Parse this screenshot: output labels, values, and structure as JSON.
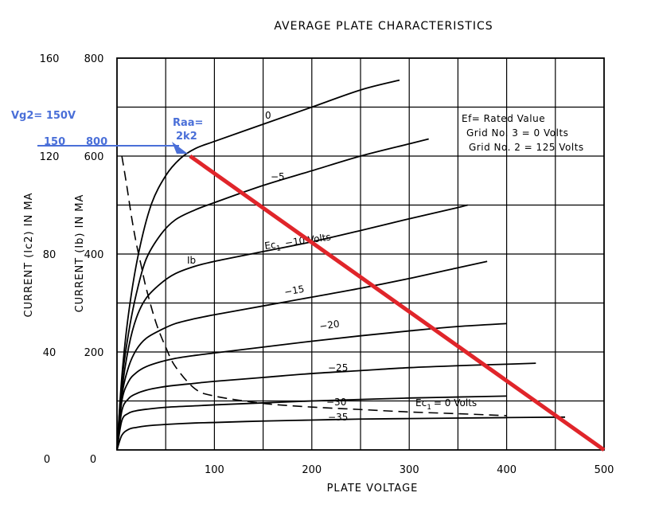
{
  "chart_data": {
    "type": "line",
    "title": "AVERAGE PLATE CHARACTERISTICS",
    "xlabel": "PLATE VOLTAGE",
    "ylabel_left": "CURRENT (Ic2) IN MA",
    "ylabel_right": "CURRENT (Ib) IN MA",
    "xlim": [
      0,
      500
    ],
    "ylim": [
      0,
      800
    ],
    "y2lim": [
      0,
      160
    ],
    "grid": true,
    "x_ticks": [
      "0",
      "100",
      "200",
      "300",
      "400",
      "500"
    ],
    "y_ticks_ib": [
      "0",
      "200",
      "400",
      "600",
      "800"
    ],
    "y_ticks_ic2": [
      "0",
      "40",
      "80",
      "120",
      "160"
    ],
    "series": [
      {
        "name": "0",
        "x": [
          0,
          5,
          12,
          22,
          35,
          50,
          65,
          80,
          100,
          150,
          200,
          250,
          290
        ],
        "y": [
          0,
          150,
          280,
          400,
          500,
          560,
          595,
          615,
          630,
          665,
          700,
          735,
          755
        ]
      },
      {
        "name": "-5",
        "x": [
          0,
          5,
          12,
          20,
          30,
          45,
          60,
          80,
          100,
          150,
          200,
          250,
          300,
          320
        ],
        "y": [
          0,
          140,
          240,
          320,
          390,
          440,
          470,
          490,
          505,
          540,
          570,
          600,
          625,
          635
        ]
      },
      {
        "name": "-10",
        "x": [
          0,
          5,
          12,
          20,
          30,
          45,
          60,
          80,
          100,
          150,
          200,
          250,
          300,
          350,
          360
        ],
        "y": [
          0,
          120,
          210,
          270,
          310,
          340,
          360,
          375,
          385,
          405,
          425,
          448,
          472,
          495,
          500
        ]
      },
      {
        "name": "-15",
        "x": [
          0,
          5,
          12,
          20,
          30,
          45,
          60,
          80,
          100,
          150,
          200,
          250,
          300,
          350,
          380
        ],
        "y": [
          0,
          110,
          170,
          205,
          228,
          245,
          258,
          268,
          276,
          294,
          312,
          330,
          350,
          372,
          385
        ]
      },
      {
        "name": "-20",
        "x": [
          0,
          5,
          12,
          20,
          30,
          45,
          60,
          80,
          100,
          150,
          200,
          250,
          300,
          350,
          400
        ],
        "y": [
          0,
          100,
          140,
          158,
          170,
          180,
          187,
          193,
          198,
          210,
          222,
          233,
          243,
          252,
          258
        ]
      },
      {
        "name": "-25",
        "x": [
          0,
          5,
          12,
          20,
          30,
          45,
          60,
          80,
          100,
          150,
          200,
          250,
          300,
          350,
          400,
          430
        ],
        "y": [
          0,
          80,
          105,
          115,
          122,
          128,
          132,
          136,
          140,
          148,
          156,
          162,
          168,
          172,
          175,
          177
        ]
      },
      {
        "name": "-30",
        "x": [
          0,
          5,
          12,
          20,
          30,
          50,
          80,
          100,
          150,
          200,
          250,
          300,
          350,
          400
        ],
        "y": [
          0,
          60,
          75,
          80,
          83,
          87,
          90,
          92,
          96,
          100,
          103,
          106,
          108,
          110
        ]
      },
      {
        "name": "-35",
        "x": [
          0,
          5,
          12,
          20,
          30,
          50,
          80,
          100,
          150,
          200,
          250,
          300,
          350,
          400,
          460
        ],
        "y": [
          0,
          30,
          42,
          46,
          49,
          52,
          55,
          56,
          59,
          61,
          63,
          64,
          65,
          66,
          67
        ]
      }
    ],
    "ic2_curve": {
      "name": "Ec1=0 Volts",
      "x": [
        5,
        10,
        15,
        20,
        25,
        30,
        40,
        50,
        60,
        80,
        100,
        150,
        200,
        250,
        300,
        350,
        400
      ],
      "y": [
        120,
        108,
        95,
        84,
        75,
        66,
        52,
        42,
        34,
        25,
        22,
        19,
        17.5,
        16.5,
        15.5,
        14.8,
        14
      ]
    },
    "load_line": {
      "x": [
        75,
        500
      ],
      "y": [
        600,
        0
      ],
      "label": "Raa=\n2k2"
    },
    "curve_labels": {
      "ec0": "0",
      "ec5": "−5",
      "ec10_prefix": "Ec",
      "ec10_sub": "1",
      "ec10_suffix": "−10 Volts",
      "ib": "Ib",
      "ec15": "−15",
      "ec20": "−20",
      "ec25": "−25",
      "ec30": "−30",
      "ec35": "−35",
      "ic2_prefix": "Ec",
      "ic2_sub": "1",
      "ic2_suffix": "= 0 Volts"
    },
    "notes": [
      "Ef= Rated Value",
      "Grid No. 3 = 0 Volts",
      "Grid No. 2 = 125 Volts"
    ],
    "annotations": {
      "vg2": "Vg2= 150V",
      "ic2_mark": "150",
      "ib_mark": "800",
      "raa_line1": "Raa=",
      "raa_line2": "2k2"
    }
  },
  "colors": {
    "loadline": "#e0252a",
    "annotation_blue": "#4a6fd8",
    "curves": "#000000"
  }
}
